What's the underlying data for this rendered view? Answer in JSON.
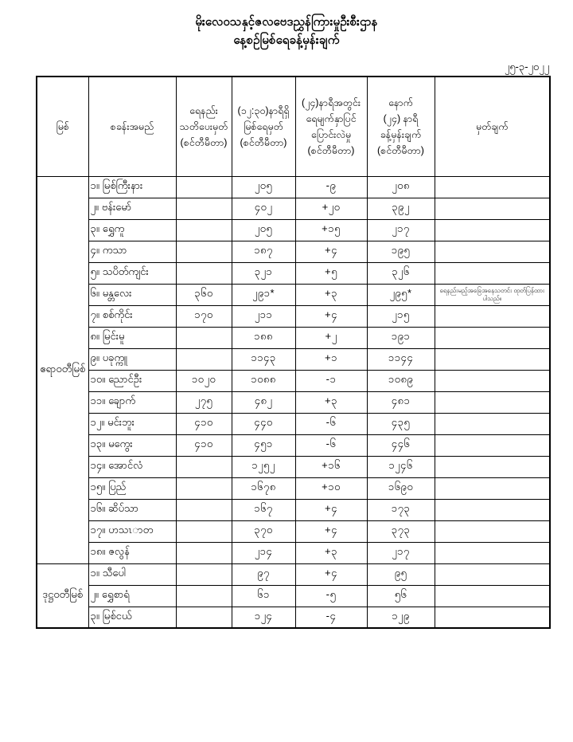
{
  "title": {
    "line1": "မိုးလေဝသနှင့်ဇလဗေဒညွှန်ကြားမှုဦးစီးဌာန",
    "line2": "နေ့စဉ်မြစ်ရေခန့်မှန်းချက်"
  },
  "date": "၂၅-၃-၂၀၂၂",
  "table": {
    "headers": [
      {
        "name": "header-river",
        "lines": [
          "မြစ်"
        ]
      },
      {
        "name": "header-station-name",
        "lines": [
          "စခန်းအမည်"
        ]
      },
      {
        "name": "header-warning-level",
        "lines": [
          "ရေနည်း",
          "သတိပေးမှတ်",
          "(စင်တီမီတာ)"
        ]
      },
      {
        "name": "header-water-level",
        "lines": [
          "(၁၂:၃၀)နာရီရှိ",
          "မြစ်ရေမှတ်",
          "(စင်တီမီတာ)"
        ]
      },
      {
        "name": "header-change-24h",
        "lines": [
          "(၂၄)နာရီအတွင်း",
          "ရေမျက်နှာပြင်",
          "ပြောင်းလဲမှု",
          "(စင်တီမီတာ)"
        ]
      },
      {
        "name": "header-forecast-24h",
        "lines": [
          "နောက်",
          "(၂၄) နာရီ",
          "ခန့်မှန်းချက်",
          "(စင်တီမီတာ)"
        ]
      },
      {
        "name": "header-remark",
        "lines": [
          "မှတ်ချက်"
        ]
      }
    ],
    "sections": [
      {
        "river": "ဧရာဝတီမြစ်",
        "rows": [
          {
            "no": "၁။",
            "name": "မြစ်ကြီးနား",
            "warning": "",
            "level": "၂၀၅",
            "change": "-၉",
            "forecast": "၂၀၈",
            "remark": ""
          },
          {
            "no": "၂။",
            "name": "ဗန်းမော်",
            "warning": "",
            "level": "၄၀၂",
            "change": "+၂၀",
            "forecast": "၃၉၂",
            "remark": ""
          },
          {
            "no": "၃။",
            "name": "ရွှေကူ",
            "warning": "",
            "level": "၂၀၅",
            "change": "+၁၅",
            "forecast": "၂၁၇",
            "remark": ""
          },
          {
            "no": "၄။",
            "name": "ကသာ",
            "warning": "",
            "level": "၁၈၇",
            "change": "+၄",
            "forecast": "၁၉၅",
            "remark": ""
          },
          {
            "no": "၅။",
            "name": "သပိတ်ကျင်း",
            "warning": "",
            "level": "၃၂၁",
            "change": "+၅",
            "forecast": "၃၂၆",
            "remark": ""
          },
          {
            "no": "၆။",
            "name": "မန္တလေး",
            "warning": "၃၆၀",
            "level": "၂၉၁*",
            "change": "+၃",
            "forecast": "၂၉၅*",
            "remark": "ရေနည်းမည့်အခြေအနေသတင်း ထုတ်ပြန်ထားပါသည်။"
          },
          {
            "no": "၇။",
            "name": "စစ်ကိုင်း",
            "warning": "၁၇၀",
            "level": "၂၁၁",
            "change": "+၄",
            "forecast": "၂၁၅",
            "remark": ""
          },
          {
            "no": "၈။",
            "name": "မြင်းမူ",
            "warning": "",
            "level": "၁၈၈",
            "change": "+၂",
            "forecast": "၁၉၁",
            "remark": ""
          },
          {
            "no": "၉။",
            "name": "ပခုက္ကူ",
            "warning": "",
            "level": "၁၁၄၃",
            "change": "+၁",
            "forecast": "၁၁၄၄",
            "remark": ""
          },
          {
            "no": "၁၀။",
            "name": "ညောင်ဦး",
            "warning": "၁၀၂၀",
            "level": "၁၀၈၈",
            "change": "-၁",
            "forecast": "၁၀၈၉",
            "remark": ""
          },
          {
            "no": "၁၁။",
            "name": "ချောက်",
            "warning": "၂၇၅",
            "level": "၄၈၂",
            "change": "+၃",
            "forecast": "၄၈၁",
            "remark": ""
          },
          {
            "no": "၁၂။",
            "name": "မင်းဘူး",
            "warning": "၄၁၀",
            "level": "၄၄၀",
            "change": "-၆",
            "forecast": "၄၃၅",
            "remark": ""
          },
          {
            "no": "၁၃။",
            "name": "မကွေး",
            "warning": "၄၁၀",
            "level": "၄၅၁",
            "change": "-၆",
            "forecast": "၄၄၆",
            "remark": ""
          },
          {
            "no": "၁၄။",
            "name": "အောင်လံ",
            "warning": "",
            "level": "၁၂၅၂",
            "change": "+၁၆",
            "forecast": "၁၂၄၆",
            "remark": ""
          },
          {
            "no": "၁၅။",
            "name": "ပြည်",
            "warning": "",
            "level": "၁၆၇၈",
            "change": "+၁၀",
            "forecast": "၁၆၉၀",
            "remark": ""
          },
          {
            "no": "၁၆။",
            "name": "ဆိပ်သာ",
            "warning": "",
            "level": "၁၆၇",
            "change": "+၄",
            "forecast": "၁၇၃",
            "remark": ""
          },
          {
            "no": "၁၇။",
            "name": "ဟသၤာတ",
            "warning": "",
            "level": "၃၇၀",
            "change": "+၄",
            "forecast": "၃၇၃",
            "remark": ""
          },
          {
            "no": "၁၈။",
            "name": "ဇလွန်",
            "warning": "",
            "level": "၂၁၄",
            "change": "+၃",
            "forecast": "၂၁၇",
            "remark": ""
          }
        ]
      },
      {
        "river": "ဒုဋ္ဌဝတီမြစ်",
        "rows": [
          {
            "no": "၁။",
            "name": "သီပေါ",
            "warning": "",
            "level": "၉၇",
            "change": "+၄",
            "forecast": "၉၅",
            "remark": ""
          },
          {
            "no": "၂။",
            "name": "ရွှေစာရံ",
            "warning": "",
            "level": "၆၁",
            "change": "-၅",
            "forecast": "၅၆",
            "remark": ""
          },
          {
            "no": "၃။",
            "name": "မြစ်ငယ်",
            "warning": "",
            "level": "၁၂၄",
            "change": "-၄",
            "forecast": "၁၂၉",
            "remark": ""
          }
        ]
      }
    ]
  }
}
